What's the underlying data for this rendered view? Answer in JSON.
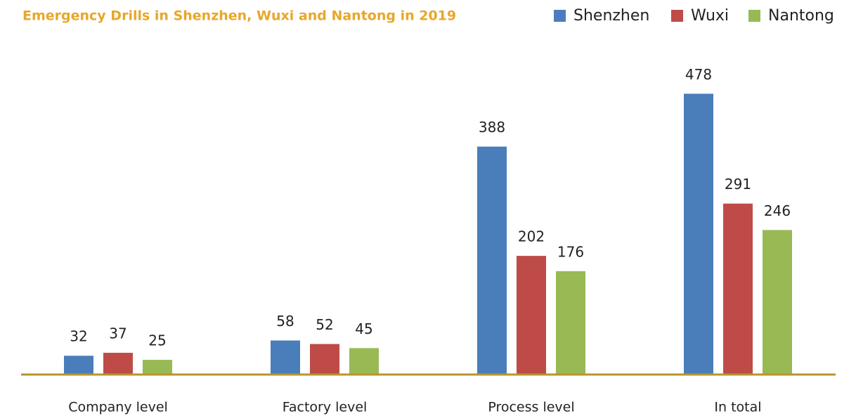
{
  "chart_data": {
    "type": "bar",
    "title": "Emergency Drills in Shenzhen, Wuxi and Nantong in 2019",
    "categories": [
      "Company level",
      "Factory level",
      "Process level",
      "In total"
    ],
    "series": [
      {
        "name": "Shenzhen",
        "color": "#4a7ebb",
        "values": [
          32,
          58,
          388,
          478
        ]
      },
      {
        "name": "Wuxi",
        "color": "#be4b48",
        "values": [
          37,
          52,
          202,
          291
        ]
      },
      {
        "name": "Nantong",
        "color": "#98b954",
        "values": [
          25,
          45,
          176,
          246
        ]
      }
    ],
    "ylim": [
      0,
      500
    ],
    "legend": "top-right"
  }
}
